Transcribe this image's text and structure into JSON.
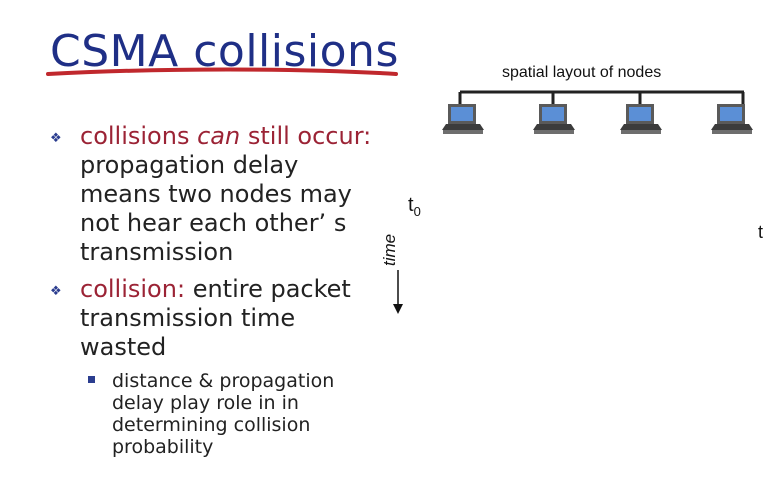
{
  "title": "CSMA collisions",
  "bullets": {
    "b1_red_a": "collisions",
    "b1_red_italic": "can",
    "b1_red_b": "still occur:",
    "b1_rest": "propagation delay means two nodes may not hear each other’ s transmission",
    "b2_red": "collision:",
    "b2_rest": "entire packet transmission time wasted",
    "sub1": "distance & propagation delay play role in in determining collision probability"
  },
  "diagram": {
    "heading": "spatial layout of nodes",
    "t0_label": "t",
    "t0_sub": "0",
    "t_label": "t",
    "time_label": "time",
    "node_icon": "computer-icon",
    "node_count": 4
  },
  "colors": {
    "title": "#1f2f86",
    "underline": "#c0282d",
    "accent_red": "#9b2335",
    "bullet": "#2b3d8f"
  }
}
